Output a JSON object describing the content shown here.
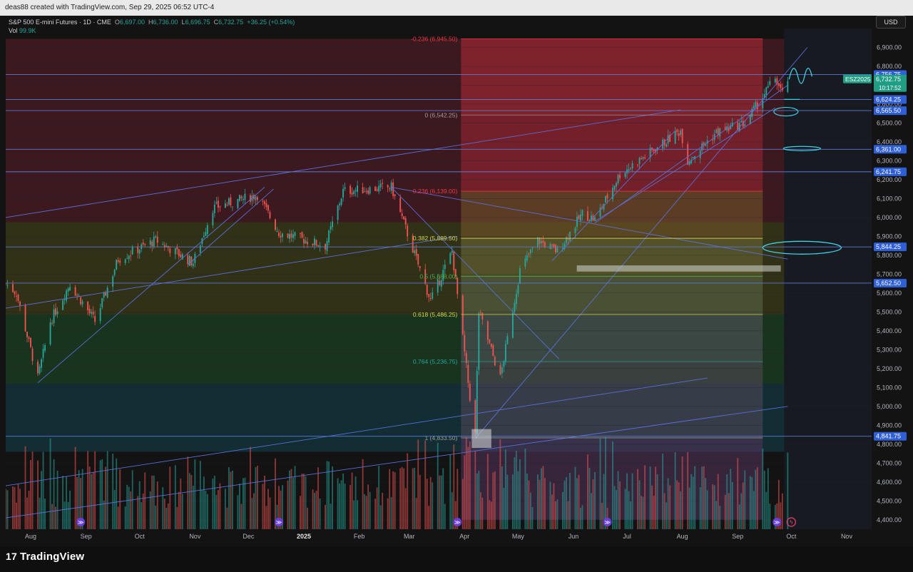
{
  "header": {
    "attribution": "deas88 created with TradingView.com, Sep 29, 2025 06:52 UTC-4"
  },
  "legend": {
    "symbol_line": "S&P 500 E-mini Futures · 1D · CME",
    "open_label": "O",
    "open": "6,697.00",
    "high_label": "H",
    "high": "6,736.00",
    "low_label": "L",
    "low": "6,696.75",
    "close_label": "C",
    "close": "6,732.75",
    "change": "+36.25 (+0.54%)",
    "vol_label": "Vol",
    "vol": "99.9K"
  },
  "currency_button": "USD",
  "logo": {
    "mark": "17",
    "text": "TradingView"
  },
  "colors": {
    "up": "#26a69a",
    "down": "#ef5350",
    "line": "#5a6fd8",
    "fib_red": "#f23645",
    "fib_yellow": "#d6d64a",
    "fib_green": "#4caf50",
    "fib_teal": "#26a69a"
  },
  "chart_data": {
    "type": "candlestick",
    "x_range": [
      "2024-07-18",
      "2025-11-15"
    ],
    "ylim": [
      4350,
      7000
    ],
    "y_ticks": [
      "4,400.00",
      "4,500.00",
      "4,600.00",
      "4,700.00",
      "4,800.00",
      "4,900.00",
      "5,000.00",
      "5,100.00",
      "5,200.00",
      "5,300.00",
      "5,400.00",
      "5,500.00",
      "5,600.00",
      "5,700.00",
      "5,800.00",
      "5,900.00",
      "6,000.00",
      "6,100.00",
      "6,200.00",
      "6,300.00",
      "6,400.00",
      "6,500.00",
      "6,600.00",
      "6,700.00",
      "6,800.00",
      "6,900.00"
    ],
    "x_ticks": [
      {
        "label": "Aug",
        "date": "2024-08-01"
      },
      {
        "label": "Sep",
        "date": "2024-09-01"
      },
      {
        "label": "Oct",
        "date": "2024-10-01"
      },
      {
        "label": "Nov",
        "date": "2024-11-01"
      },
      {
        "label": "Dec",
        "date": "2024-12-01"
      },
      {
        "label": "2025",
        "date": "2025-01-01",
        "bold": true
      },
      {
        "label": "Feb",
        "date": "2025-02-01"
      },
      {
        "label": "Mar",
        "date": "2025-03-01"
      },
      {
        "label": "Apr",
        "date": "2025-04-01"
      },
      {
        "label": "May",
        "date": "2025-05-01"
      },
      {
        "label": "Jun",
        "date": "2025-06-01"
      },
      {
        "label": "Jul",
        "date": "2025-07-01"
      },
      {
        "label": "Aug",
        "date": "2025-08-01"
      },
      {
        "label": "Sep",
        "date": "2025-09-01"
      },
      {
        "label": "Oct",
        "date": "2025-10-01"
      },
      {
        "label": "Nov",
        "date": "2025-11-01"
      }
    ],
    "price_path": [
      [
        "2024-07-18",
        5650
      ],
      [
        "2024-07-24",
        5600
      ],
      [
        "2024-08-05",
        5150
      ],
      [
        "2024-08-12",
        5450
      ],
      [
        "2024-08-23",
        5650
      ],
      [
        "2024-09-06",
        5450
      ],
      [
        "2024-09-19",
        5780
      ],
      [
        "2024-10-10",
        5880
      ],
      [
        "2024-10-31",
        5760
      ],
      [
        "2024-11-11",
        6050
      ],
      [
        "2024-12-06",
        6120
      ],
      [
        "2024-12-18",
        5920
      ],
      [
        "2025-01-13",
        5850
      ],
      [
        "2025-01-23",
        6140
      ],
      [
        "2025-02-19",
        6160
      ],
      [
        "2025-03-13",
        5560
      ],
      [
        "2025-03-25",
        5820
      ],
      [
        "2025-04-04",
        5050
      ],
      [
        "2025-04-07",
        4850
      ],
      [
        "2025-04-09",
        5500
      ],
      [
        "2025-04-21",
        5150
      ],
      [
        "2025-05-02",
        5720
      ],
      [
        "2025-05-12",
        5880
      ],
      [
        "2025-05-23",
        5820
      ],
      [
        "2025-06-06",
        6020
      ],
      [
        "2025-06-13",
        5990
      ],
      [
        "2025-06-27",
        6230
      ],
      [
        "2025-07-31",
        6460
      ],
      [
        "2025-08-04",
        6300
      ],
      [
        "2025-08-20",
        6450
      ],
      [
        "2025-09-05",
        6500
      ],
      [
        "2025-09-22",
        6740
      ],
      [
        "2025-09-26",
        6650
      ],
      [
        "2025-09-29",
        6732.75
      ]
    ],
    "horizontal_levels": [
      {
        "price": 6756.75,
        "label": "6,756.75"
      },
      {
        "price": 6624.25,
        "label": "6,624.25"
      },
      {
        "price": 6565.5,
        "label": "6,565.50"
      },
      {
        "price": 6361.0,
        "label": "6,361.00"
      },
      {
        "price": 6241.75,
        "label": "6,241.75"
      },
      {
        "price": 5844.25,
        "label": "5,844.25"
      },
      {
        "price": 5652.5,
        "label": "5,652.50"
      },
      {
        "price": 4841.75,
        "label": "4,841.75"
      }
    ],
    "last_price": {
      "symbol": "ESZ2025",
      "price": 6732.75,
      "label": "6,732.75",
      "countdown": "10:17:52"
    },
    "fibonacci": [
      {
        "ratio_label": "-0.236 (6,945.50)",
        "price": 6945.5,
        "color": "#f23645"
      },
      {
        "ratio_label": "0 (6,542.25)",
        "price": 6542.25,
        "color": "#9e9e9e"
      },
      {
        "ratio_label": "0.236 (6,139.00)",
        "price": 6139.0,
        "color": "#f23645"
      },
      {
        "ratio_label": "0.382 (5,889.50)",
        "price": 5889.5,
        "color": "#d6d64a"
      },
      {
        "ratio_label": "0.5 (5,688.00)",
        "price": 5688.0,
        "color": "#4caf50"
      },
      {
        "ratio_label": "0.618 (5,486.25)",
        "price": 5486.25,
        "color": "#d6d64a"
      },
      {
        "ratio_label": "0.764 (5,236.75)",
        "price": 5236.75,
        "color": "#26a69a"
      },
      {
        "ratio_label": "1 (4,833.50)",
        "price": 4833.5,
        "color": "#9e9e9e"
      }
    ]
  }
}
